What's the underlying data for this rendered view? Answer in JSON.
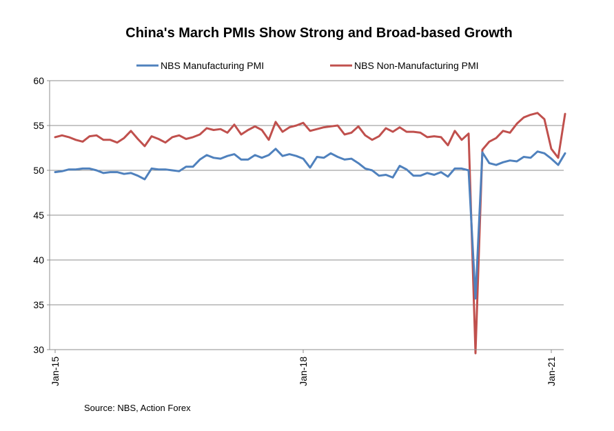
{
  "chart_data": {
    "type": "line",
    "title": "China's March PMIs Show Strong and Broad-based Growth",
    "source": "Source: NBS, Action Forex",
    "xlabel": "",
    "ylabel": "",
    "ylim": [
      30,
      60
    ],
    "yticks": [
      30,
      35,
      40,
      45,
      50,
      55,
      60
    ],
    "x_tick_labels": [
      {
        "label": "Jan-15",
        "index": 0
      },
      {
        "label": "Jan-18",
        "index": 36
      },
      {
        "label": "Jan-21",
        "index": 72
      }
    ],
    "grid": "horizontal",
    "legend_position": "top",
    "series": [
      {
        "name": "NBS Manufacturing PMI",
        "color": "#4f81bd",
        "values": [
          49.8,
          49.9,
          50.1,
          50.1,
          50.2,
          50.2,
          50.0,
          49.7,
          49.8,
          49.8,
          49.6,
          49.7,
          49.4,
          49.0,
          50.2,
          50.1,
          50.1,
          50.0,
          49.9,
          50.4,
          50.4,
          51.2,
          51.7,
          51.4,
          51.3,
          51.6,
          51.8,
          51.2,
          51.2,
          51.7,
          51.4,
          51.7,
          52.4,
          51.6,
          51.8,
          51.6,
          51.3,
          50.3,
          51.5,
          51.4,
          51.9,
          51.5,
          51.2,
          51.3,
          50.8,
          50.2,
          50.0,
          49.4,
          49.5,
          49.2,
          50.5,
          50.1,
          49.4,
          49.4,
          49.7,
          49.5,
          49.8,
          49.3,
          50.2,
          50.2,
          50.0,
          35.7,
          52.0,
          50.8,
          50.6,
          50.9,
          51.1,
          51.0,
          51.5,
          51.4,
          52.1,
          51.9,
          51.3,
          50.6,
          51.9
        ]
      },
      {
        "name": "NBS Non-Manufacturing PMI",
        "color": "#c0504d",
        "values": [
          53.7,
          53.9,
          53.7,
          53.4,
          53.2,
          53.8,
          53.9,
          53.4,
          53.4,
          53.1,
          53.6,
          54.4,
          53.5,
          52.7,
          53.8,
          53.5,
          53.1,
          53.7,
          53.9,
          53.5,
          53.7,
          54.0,
          54.7,
          54.5,
          54.6,
          54.2,
          55.1,
          54.0,
          54.5,
          54.9,
          54.5,
          53.4,
          55.4,
          54.3,
          54.8,
          55.0,
          55.3,
          54.4,
          54.6,
          54.8,
          54.9,
          55.0,
          54.0,
          54.2,
          54.9,
          53.9,
          53.4,
          53.8,
          54.7,
          54.3,
          54.8,
          54.3,
          54.3,
          54.2,
          53.7,
          53.8,
          53.7,
          52.8,
          54.4,
          53.4,
          54.1,
          29.6,
          52.3,
          53.2,
          53.6,
          54.4,
          54.2,
          55.2,
          55.9,
          56.2,
          56.4,
          55.7,
          52.4,
          51.4,
          56.3
        ]
      }
    ]
  }
}
